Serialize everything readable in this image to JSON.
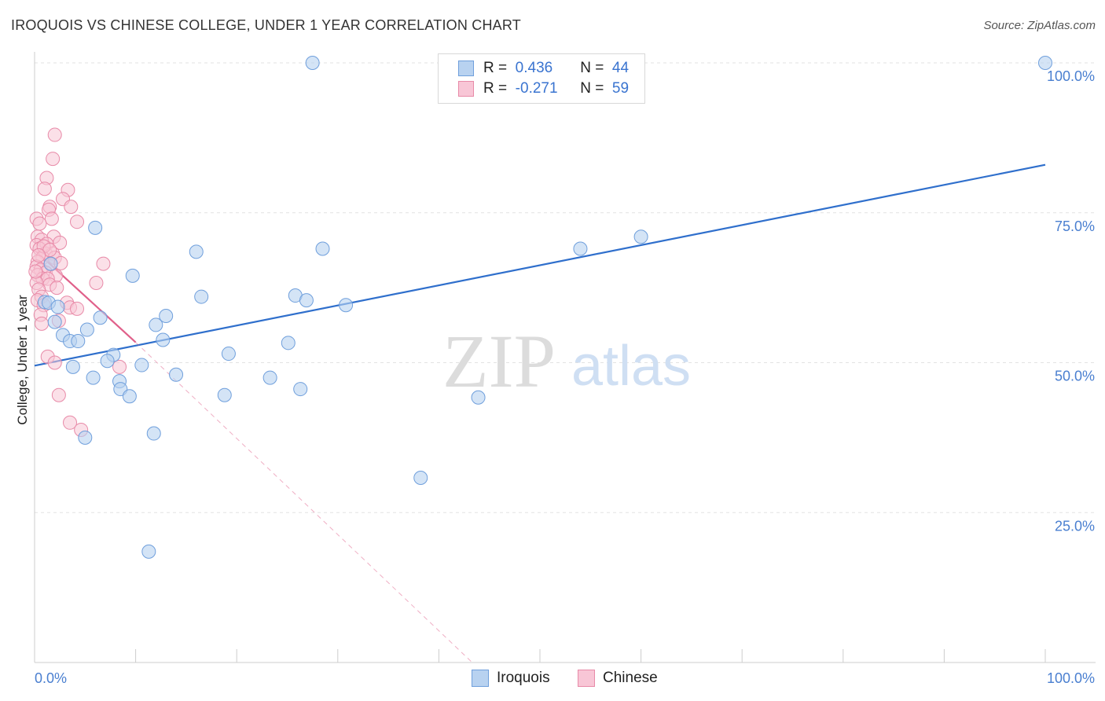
{
  "header": {
    "title": "IROQUOIS VS CHINESE COLLEGE, UNDER 1 YEAR CORRELATION CHART",
    "source": "Source: ZipAtlas.com"
  },
  "legend": {
    "rows": [
      {
        "r_label": "R =",
        "r_value": "0.436",
        "n_label": "N =",
        "n_value": "44"
      },
      {
        "r_label": "R =",
        "r_value": "-0.271",
        "n_label": "N =",
        "n_value": "59"
      }
    ]
  },
  "bottom_legend": {
    "iroquois": "Iroquois",
    "chinese": "Chinese"
  },
  "watermark": {
    "zip": "ZIP",
    "atlas": "atlas"
  },
  "colors": {
    "iroquois_fill": "#b8d2f0",
    "iroquois_stroke": "#6f9fdc",
    "iroquois_line": "#2f6fcc",
    "chinese_fill": "#f8c6d6",
    "chinese_stroke": "#e88aa8",
    "chinese_line": "#e0608a",
    "tick_text": "#4a7fd0",
    "grid": "#e2e2e2"
  },
  "chart_data": {
    "type": "scatter",
    "title": "IROQUOIS VS CHINESE COLLEGE, UNDER 1 YEAR CORRELATION CHART",
    "xlabel": "",
    "ylabel": "College, Under 1 year",
    "xlim": [
      0,
      100
    ],
    "ylim": [
      0,
      100
    ],
    "x_tick_labels": [
      "0.0%",
      "100.0%"
    ],
    "y_ticks": [
      25,
      50,
      75,
      100
    ],
    "y_tick_labels": [
      "25.0%",
      "50.0%",
      "75.0%",
      "100.0%"
    ],
    "grid": true,
    "series": [
      {
        "name": "Iroquois",
        "R": 0.436,
        "N": 44,
        "trend": {
          "x": [
            0,
            100
          ],
          "y": [
            49.5,
            83.0
          ],
          "style": "solid"
        },
        "points": [
          [
            27.5,
            100.0
          ],
          [
            100.0,
            100.0
          ],
          [
            6.0,
            72.5
          ],
          [
            16.0,
            68.5
          ],
          [
            28.5,
            69.0
          ],
          [
            54.0,
            69.0
          ],
          [
            60.0,
            71.0
          ],
          [
            9.7,
            64.5
          ],
          [
            16.5,
            61.0
          ],
          [
            25.8,
            61.2
          ],
          [
            26.9,
            60.4
          ],
          [
            1.0,
            60.1
          ],
          [
            1.4,
            60.0
          ],
          [
            2.3,
            59.3
          ],
          [
            30.8,
            59.6
          ],
          [
            6.5,
            57.5
          ],
          [
            13.0,
            57.8
          ],
          [
            2.0,
            56.8
          ],
          [
            12.0,
            56.3
          ],
          [
            5.2,
            55.5
          ],
          [
            2.8,
            54.6
          ],
          [
            12.7,
            53.8
          ],
          [
            3.5,
            53.6
          ],
          [
            4.3,
            53.6
          ],
          [
            25.1,
            53.3
          ],
          [
            7.8,
            51.3
          ],
          [
            19.2,
            51.5
          ],
          [
            7.2,
            50.3
          ],
          [
            3.8,
            49.3
          ],
          [
            10.6,
            49.6
          ],
          [
            14.0,
            48.0
          ],
          [
            5.8,
            47.5
          ],
          [
            23.3,
            47.5
          ],
          [
            8.4,
            46.9
          ],
          [
            8.5,
            45.6
          ],
          [
            26.3,
            45.6
          ],
          [
            9.4,
            44.4
          ],
          [
            18.8,
            44.6
          ],
          [
            43.9,
            44.2
          ],
          [
            11.8,
            38.2
          ],
          [
            5.0,
            37.5
          ],
          [
            38.2,
            30.8
          ],
          [
            11.3,
            18.5
          ],
          [
            1.6,
            66.5
          ]
        ]
      },
      {
        "name": "Chinese",
        "R": -0.271,
        "N": 59,
        "trend_solid": {
          "x": [
            0,
            10.0
          ],
          "y": [
            68.8,
            53.4
          ]
        },
        "trend_dashed": {
          "x": [
            10.0,
            43.3
          ],
          "y": [
            53.4,
            0
          ]
        },
        "points": [
          [
            2.0,
            88.0
          ],
          [
            1.8,
            84.0
          ],
          [
            1.2,
            80.8
          ],
          [
            1.0,
            79.0
          ],
          [
            3.3,
            78.8
          ],
          [
            2.8,
            77.3
          ],
          [
            1.5,
            76.0
          ],
          [
            3.6,
            76.0
          ],
          [
            1.4,
            75.5
          ],
          [
            0.2,
            74.0
          ],
          [
            1.7,
            74.0
          ],
          [
            4.2,
            73.5
          ],
          [
            0.5,
            73.2
          ],
          [
            0.3,
            71.0
          ],
          [
            1.9,
            71.0
          ],
          [
            0.7,
            70.5
          ],
          [
            2.5,
            70.0
          ],
          [
            0.2,
            69.6
          ],
          [
            1.2,
            69.8
          ],
          [
            0.5,
            69.0
          ],
          [
            1.1,
            68.2
          ],
          [
            1.8,
            68.2
          ],
          [
            0.8,
            67.5
          ],
          [
            2.0,
            67.5
          ],
          [
            0.3,
            66.8
          ],
          [
            1.6,
            66.4
          ],
          [
            2.6,
            66.6
          ],
          [
            6.8,
            66.5
          ],
          [
            0.2,
            66.0
          ],
          [
            0.6,
            65.5
          ],
          [
            1.1,
            65.0
          ],
          [
            0.3,
            64.6
          ],
          [
            2.1,
            64.5
          ],
          [
            0.8,
            64.0
          ],
          [
            1.3,
            64.0
          ],
          [
            0.2,
            63.3
          ],
          [
            1.5,
            63.0
          ],
          [
            6.1,
            63.3
          ],
          [
            0.4,
            62.2
          ],
          [
            0.7,
            61.0
          ],
          [
            0.3,
            60.4
          ],
          [
            3.2,
            60.0
          ],
          [
            0.9,
            59.6
          ],
          [
            3.5,
            59.2
          ],
          [
            4.2,
            59.0
          ],
          [
            0.6,
            58.0
          ],
          [
            2.4,
            57.0
          ],
          [
            0.7,
            56.5
          ],
          [
            1.3,
            51.0
          ],
          [
            2.0,
            50.0
          ],
          [
            8.4,
            49.3
          ],
          [
            2.4,
            44.6
          ],
          [
            3.5,
            40.0
          ],
          [
            4.6,
            38.8
          ],
          [
            0.9,
            69.4
          ],
          [
            1.5,
            68.8
          ],
          [
            0.4,
            67.9
          ],
          [
            2.2,
            62.5
          ],
          [
            0.1,
            65.2
          ]
        ]
      }
    ]
  }
}
